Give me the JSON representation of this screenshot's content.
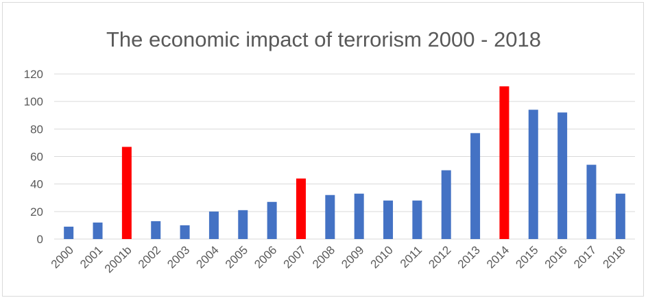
{
  "chart_data": {
    "type": "bar",
    "title": "The economic impact of terrorism 2000 - 2018",
    "xlabel": "",
    "ylabel": "",
    "categories": [
      "2000",
      "2001",
      "2001b",
      "2002",
      "2003",
      "2004",
      "2005",
      "2006",
      "2007",
      "2008",
      "2009",
      "2010",
      "2011",
      "2012",
      "2013",
      "2014",
      "2015",
      "2016",
      "2017",
      "2018"
    ],
    "values": [
      9,
      12,
      67,
      13,
      10,
      20,
      21,
      27,
      44,
      32,
      33,
      28,
      28,
      50,
      77,
      111,
      94,
      92,
      54,
      33
    ],
    "highlighted_categories": [
      "2001b",
      "2007",
      "2014"
    ],
    "ylim": [
      0,
      120
    ],
    "yticks": [
      "0",
      "20",
      "40",
      "60",
      "80",
      "100",
      "120"
    ],
    "grid": true,
    "legend": "none",
    "colors": {
      "bar": "#4472c4",
      "highlight": "#ff0000",
      "grid": "#d9d9d9",
      "text": "#595959"
    }
  }
}
